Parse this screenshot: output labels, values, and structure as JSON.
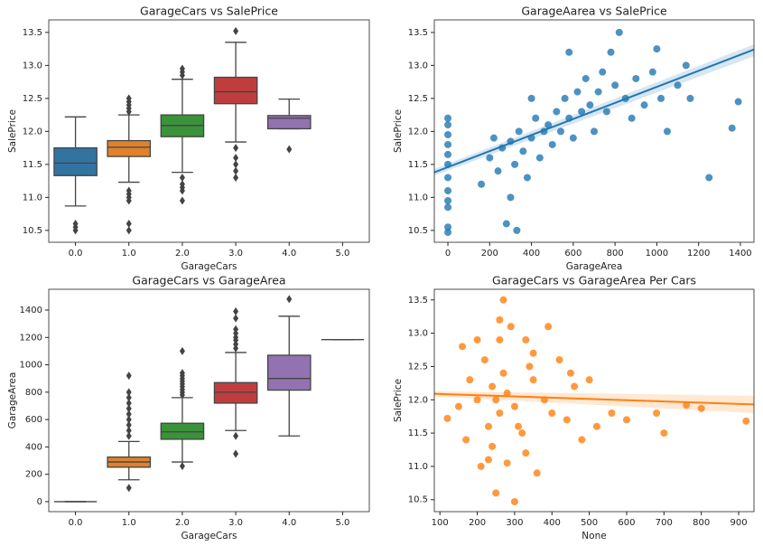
{
  "chart_data": [
    {
      "type": "box",
      "title": "GarageCars vs SalePrice",
      "xlabel": "GarageCars",
      "ylabel": "SalePrice",
      "categories": [
        "0.0",
        "1.0",
        "2.0",
        "3.0",
        "4.0",
        "5.0"
      ],
      "ylim": [
        10.32,
        13.69
      ],
      "yticks": [
        10.5,
        {
          "value": 11,
          "label": "11.0"
        },
        11.5,
        {
          "value": 12,
          "label": "12.0"
        },
        12.5,
        {
          "value": 13,
          "label": "13.0"
        },
        13.5
      ],
      "boxes": [
        {
          "color": "#3274a1",
          "min": 10.87,
          "q1": 11.33,
          "median": 11.52,
          "q3": 11.75,
          "max": 12.22,
          "outliers": [
            10.6,
            10.55,
            10.5
          ]
        },
        {
          "color": "#e1812c",
          "min": 11.23,
          "q1": 11.62,
          "median": 11.76,
          "q3": 11.86,
          "max": 12.25,
          "outliers": [
            11.1,
            11.05,
            11.0,
            10.95,
            10.6,
            10.5,
            12.3,
            12.35,
            12.4,
            12.45,
            12.5
          ]
        },
        {
          "color": "#3a923a",
          "min": 11.38,
          "q1": 11.92,
          "median": 12.09,
          "q3": 12.25,
          "max": 12.79,
          "outliers": [
            11.3,
            11.2,
            11.15,
            11.1,
            10.95,
            12.85,
            12.9,
            12.95
          ]
        },
        {
          "color": "#c03d3e",
          "min": 11.84,
          "q1": 12.42,
          "median": 12.6,
          "q3": 12.82,
          "max": 13.35,
          "outliers": [
            11.75,
            11.6,
            11.5,
            11.4,
            11.3,
            13.52
          ]
        },
        {
          "color": "#9372b2",
          "min": 12.04,
          "q1": 12.04,
          "median": 12.2,
          "q3": 12.24,
          "max": 12.49,
          "outliers": [
            11.73
          ]
        },
        null
      ]
    },
    {
      "type": "scatter",
      "title": "GarageAarea vs SalePrice",
      "xlabel": "GarageArea",
      "ylabel": "SalePrice",
      "color": "#1f77b4",
      "xlim": [
        -65,
        1465
      ],
      "ylim": [
        10.32,
        13.69
      ],
      "xticks": [
        0,
        200,
        400,
        600,
        800,
        1000,
        1200,
        1400
      ],
      "yticks": [
        10.5,
        {
          "value": 11,
          "label": "11.0"
        },
        11.5,
        {
          "value": 12,
          "label": "12.0"
        },
        12.5,
        {
          "value": 13,
          "label": "13.0"
        },
        13.5
      ],
      "x": [
        0,
        0,
        0,
        0,
        0,
        0,
        0,
        0,
        0,
        0,
        0,
        0,
        160,
        200,
        220,
        240,
        260,
        280,
        300,
        300,
        320,
        340,
        360,
        380,
        400,
        420,
        440,
        460,
        480,
        500,
        520,
        540,
        560,
        580,
        600,
        620,
        640,
        660,
        680,
        700,
        720,
        740,
        760,
        780,
        800,
        820,
        850,
        880,
        900,
        940,
        980,
        1000,
        1020,
        1050,
        1100,
        1140,
        1160,
        1250,
        1360,
        1390,
        330,
        400,
        580
      ],
      "y": [
        10.47,
        10.55,
        10.85,
        10.95,
        11.1,
        11.3,
        11.5,
        11.65,
        11.8,
        11.95,
        12.1,
        12.2,
        11.2,
        11.6,
        11.9,
        11.4,
        11.75,
        10.6,
        11.0,
        11.85,
        11.5,
        12.0,
        11.7,
        11.3,
        11.9,
        12.2,
        11.6,
        12.0,
        12.1,
        11.8,
        12.3,
        12.0,
        12.5,
        12.2,
        11.9,
        12.6,
        12.3,
        12.8,
        12.4,
        12.0,
        12.6,
        12.9,
        12.3,
        13.2,
        12.7,
        13.5,
        12.5,
        12.2,
        12.8,
        12.4,
        12.9,
        13.25,
        12.5,
        12.0,
        12.7,
        13.0,
        12.5,
        11.3,
        12.05,
        12.45,
        10.5,
        12.5,
        13.2
      ],
      "fit": {
        "x": [
          -65,
          1465
        ],
        "y": [
          11.38,
          13.24
        ],
        "lower": [
          11.33,
          13.14
        ],
        "upper": [
          11.43,
          13.32
        ]
      }
    },
    {
      "type": "box",
      "title": "GarageCars vs GarageArea",
      "xlabel": "GarageCars",
      "ylabel": "GarageArea",
      "categories": [
        "0.0",
        "1.0",
        "2.0",
        "3.0",
        "4.0",
        "5.0"
      ],
      "ylim": [
        -73,
        1552
      ],
      "yticks": [
        0,
        200,
        400,
        600,
        800,
        1000,
        1200,
        1400
      ],
      "boxes": [
        {
          "color": "#3274a1",
          "min": 0,
          "q1": 0,
          "median": 0,
          "q3": 0,
          "max": 0,
          "outliers": []
        },
        {
          "color": "#e1812c",
          "min": 160,
          "q1": 252,
          "median": 290,
          "q3": 326,
          "max": 440,
          "outliers": [
            100,
            480,
            520,
            560,
            600,
            640,
            680,
            720,
            760,
            800,
            920
          ]
        },
        {
          "color": "#3a923a",
          "min": 290,
          "q1": 456,
          "median": 510,
          "q3": 573,
          "max": 760,
          "outliers": [
            260,
            780,
            800,
            820,
            840,
            860,
            880,
            900,
            920,
            940,
            1100
          ]
        },
        {
          "color": "#c03d3e",
          "min": 520,
          "q1": 720,
          "median": 800,
          "q3": 870,
          "max": 1090,
          "outliers": [
            480,
            350,
            1120,
            1150,
            1180,
            1200,
            1230,
            1260,
            1340,
            1390
          ]
        },
        {
          "color": "#9372b2",
          "min": 480,
          "q1": 815,
          "median": 900,
          "q3": 1070,
          "max": 1355,
          "outliers": [
            1480
          ]
        },
        {
          "color": "#845b53",
          "min": 1184,
          "q1": 1184,
          "median": 1184,
          "q3": 1184,
          "max": 1184,
          "outliers": []
        }
      ]
    },
    {
      "type": "scatter",
      "title": "GarageCars vs GarageArea Per Cars",
      "xlabel": "None",
      "ylabel": "SalePrice",
      "color": "#ff7f0e",
      "xlim": [
        85,
        941
      ],
      "ylim": [
        10.32,
        13.66
      ],
      "xticks": [
        100,
        200,
        300,
        400,
        500,
        600,
        700,
        800,
        900
      ],
      "yticks": [
        10.5,
        {
          "value": 11,
          "label": "11.0"
        },
        11.5,
        {
          "value": 12,
          "label": "12.0"
        },
        12.5,
        {
          "value": 13,
          "label": "13.0"
        },
        13.5
      ],
      "x": [
        250,
        260,
        240,
        270,
        230,
        280,
        300,
        220,
        260,
        290,
        270,
        250,
        300,
        210,
        240,
        320,
        350,
        380,
        400,
        420,
        440,
        460,
        480,
        500,
        520,
        560,
        600,
        680,
        700,
        760,
        800,
        920,
        180,
        170,
        120,
        160,
        200,
        330,
        350,
        390,
        260,
        230,
        280,
        330,
        450,
        360,
        310,
        200,
        150,
        340
      ],
      "y": [
        12.0,
        11.8,
        12.2,
        12.4,
        11.6,
        12.1,
        11.9,
        12.6,
        12.9,
        13.1,
        13.5,
        10.6,
        10.47,
        11.0,
        11.3,
        11.5,
        12.3,
        12.0,
        11.8,
        12.6,
        11.7,
        12.2,
        11.4,
        12.3,
        11.6,
        11.8,
        11.7,
        11.8,
        11.5,
        11.92,
        11.87,
        11.68,
        12.3,
        11.4,
        11.72,
        12.8,
        12.9,
        12.9,
        12.7,
        13.1,
        13.2,
        11.1,
        11.05,
        11.2,
        12.4,
        10.9,
        11.6,
        12.0,
        11.9,
        12.5
      ],
      "fit": {
        "x": [
          85,
          941
        ],
        "y": [
          12.09,
          11.93
        ],
        "lower": [
          12.05,
          11.8
        ],
        "upper": [
          12.13,
          12.06
        ]
      }
    }
  ]
}
